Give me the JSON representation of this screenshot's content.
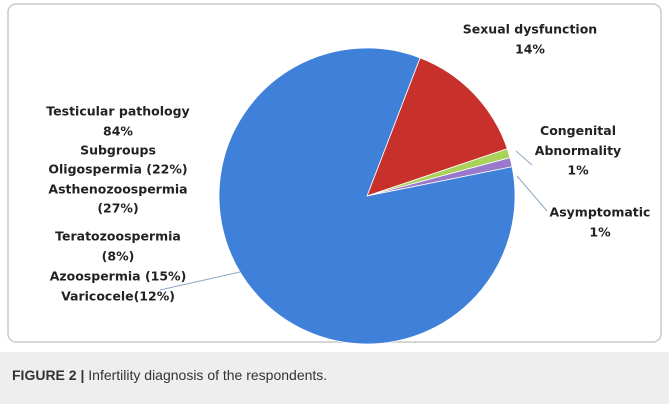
{
  "chart_data": {
    "type": "pie",
    "categories": [
      "Sexual dysfunction",
      "Congenital Abnormality",
      "Asymptomatic",
      "Testicular pathology"
    ],
    "values": [
      14,
      1,
      1,
      84
    ],
    "value_labels": [
      "14%",
      "1%",
      "1%",
      "84%"
    ],
    "colors": [
      "#c8302c",
      "#a8d25a",
      "#9a78cc",
      "#3f80d8"
    ],
    "annotations": [
      "Subgroups",
      "Oligospermia (22%)",
      "Asthenozoospermia",
      "(27%)",
      "Teratozoospermia",
      "(8%)",
      "Azoospermia (15%)",
      "Varicocele(12%)"
    ]
  },
  "caption": {
    "label": "FIGURE 2 |",
    "text": "Infertility diagnosis of the respondents."
  }
}
